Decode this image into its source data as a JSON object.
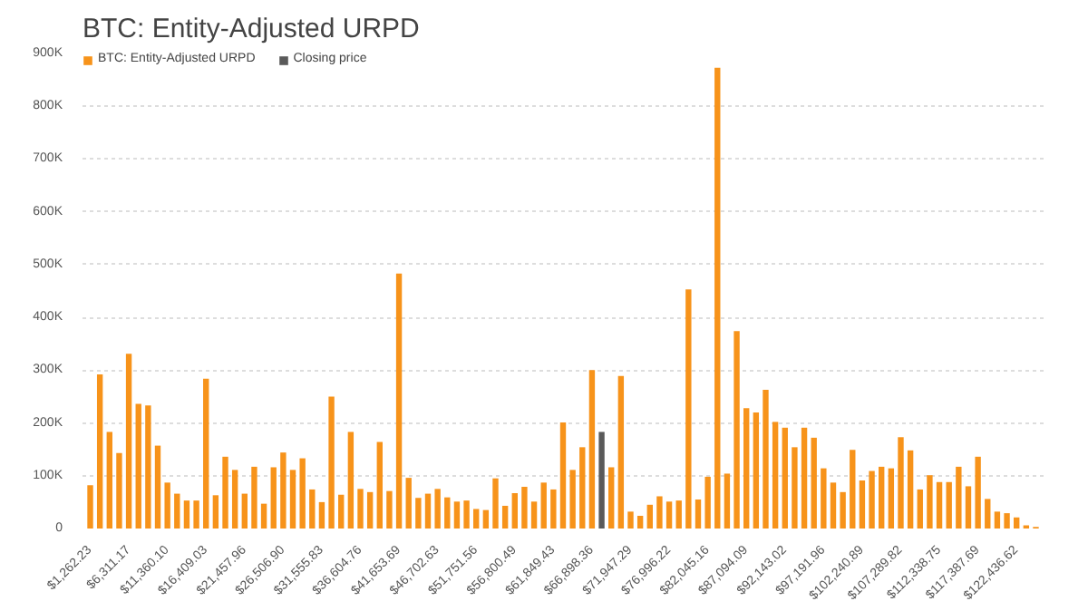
{
  "chart_data": {
    "type": "bar",
    "title": "BTC: Entity-Adjusted URPD",
    "categories": [
      "$1,262.23",
      null,
      null,
      null,
      "$6,311.17",
      null,
      null,
      null,
      "$11,360.10",
      null,
      null,
      null,
      "$16,409.03",
      null,
      null,
      null,
      "$21,457.96",
      null,
      null,
      null,
      "$26,506.90",
      null,
      null,
      null,
      "$31,555.83",
      null,
      null,
      null,
      "$36,604.76",
      null,
      null,
      null,
      "$41,653.69",
      null,
      null,
      null,
      "$46,702.63",
      null,
      null,
      null,
      "$51,751.56",
      null,
      null,
      null,
      "$56,800.49",
      null,
      null,
      null,
      "$61,849.43",
      null,
      null,
      null,
      "$66,898.36",
      null,
      null,
      null,
      "$71,947.29",
      null,
      null,
      null,
      "$76,996.22",
      null,
      null,
      null,
      "$82,045.16",
      null,
      null,
      null,
      "$87,094.09",
      null,
      null,
      null,
      "$92,143.02",
      null,
      null,
      null,
      "$97,191.96",
      null,
      null,
      null,
      "$102,240.89",
      null,
      null,
      null,
      "$107,289.82",
      null,
      null,
      null,
      "$112,338.75",
      null,
      null,
      null,
      "$117,387.69",
      null,
      null,
      null,
      "$122,436.62",
      null,
      null
    ],
    "series": [
      {
        "name": "BTC: Entity-Adjusted URPD",
        "color": "#f7931a",
        "values": [
          82000,
          292000,
          183000,
          143000,
          331000,
          236000,
          233000,
          157000,
          87000,
          66000,
          53000,
          53000,
          284000,
          63000,
          136000,
          111000,
          66000,
          117000,
          47000,
          116000,
          144000,
          111000,
          133000,
          74000,
          50000,
          250000,
          64000,
          183000,
          75000,
          69000,
          164000,
          71000,
          483000,
          96000,
          58000,
          66000,
          75000,
          59000,
          51000,
          53000,
          37000,
          35000,
          95000,
          43000,
          67000,
          79000,
          51000,
          87000,
          74000,
          201000,
          111000,
          154000,
          300000,
          null,
          116000,
          289000,
          32000,
          24000,
          45000,
          61000,
          51000,
          53000,
          453000,
          55000,
          98000,
          873000,
          104000,
          374000,
          228000,
          220000,
          263000,
          202000,
          191000,
          154000,
          191000,
          172000,
          114000,
          87000,
          69000,
          149000,
          91000,
          109000,
          117000,
          114000,
          173000,
          148000,
          74000,
          101000,
          88000,
          88000,
          117000,
          80000,
          136000,
          56000,
          32000,
          29000,
          21000,
          6000,
          3000
        ]
      },
      {
        "name": "Closing price",
        "color": "#5a5a5a",
        "values": [
          null,
          null,
          null,
          null,
          null,
          null,
          null,
          null,
          null,
          null,
          null,
          null,
          null,
          null,
          null,
          null,
          null,
          null,
          null,
          null,
          null,
          null,
          null,
          null,
          null,
          null,
          null,
          null,
          null,
          null,
          null,
          null,
          null,
          null,
          null,
          null,
          null,
          null,
          null,
          null,
          null,
          null,
          null,
          null,
          null,
          null,
          null,
          null,
          null,
          null,
          null,
          null,
          null,
          183000,
          null,
          null,
          null,
          null,
          null,
          null,
          null,
          null,
          null,
          null,
          null,
          null,
          null,
          null,
          null,
          null,
          null,
          null,
          null,
          null,
          null,
          null,
          null,
          null,
          null,
          null,
          null,
          null,
          null,
          null,
          null,
          null,
          null,
          null,
          null,
          null,
          null,
          null,
          null,
          null,
          null,
          null,
          null,
          null,
          null
        ]
      }
    ],
    "ylim": [
      0,
      900000
    ],
    "yticks": [
      {
        "value": 0,
        "label": "0"
      },
      {
        "value": 100000,
        "label": "100K"
      },
      {
        "value": 200000,
        "label": "200K"
      },
      {
        "value": 300000,
        "label": "300K"
      },
      {
        "value": 400000,
        "label": "400K"
      },
      {
        "value": 500000,
        "label": "500K"
      },
      {
        "value": 600000,
        "label": "600K"
      },
      {
        "value": 700000,
        "label": "700K"
      },
      {
        "value": 800000,
        "label": "800K"
      },
      {
        "value": 900000,
        "label": "900K"
      }
    ],
    "grid": "y",
    "legend": "top left"
  }
}
